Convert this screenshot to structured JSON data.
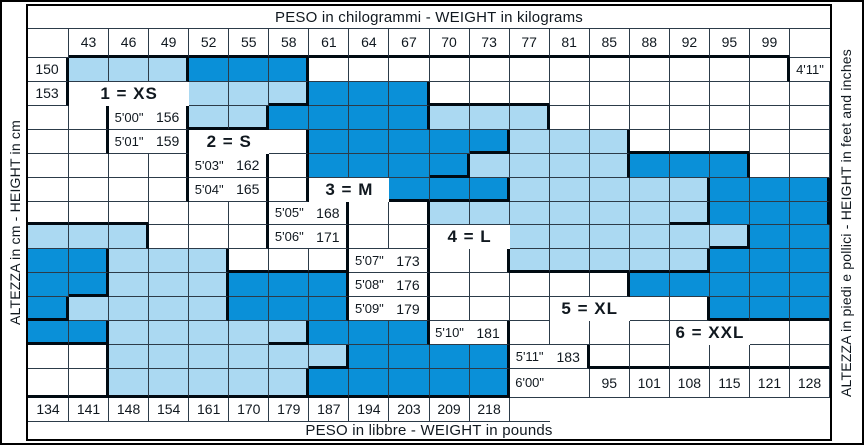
{
  "figure": {
    "top_title": "PESO in chilogrammi -  WEIGHT in kilograms",
    "bottom_title": "PESO in libbre -  WEIGHT in pounds",
    "left_title": "ALTEZZA in cm  -  HEIGHT in cm",
    "right_title": "ALTEZZA in piedi e pollici - HEIGHT in feet and inches"
  },
  "chart_data": {
    "type": "heatmap",
    "title": "Size chart: height vs weight with size zones",
    "columns_kg": [
      43,
      46,
      49,
      52,
      55,
      58,
      61,
      64,
      67,
      70,
      73,
      77,
      81,
      85,
      88,
      92,
      95,
      99
    ],
    "columns_lbs": [
      95,
      101,
      108,
      115,
      121,
      128,
      134,
      141,
      148,
      154,
      161,
      170,
      179,
      187,
      194,
      203,
      209,
      218
    ],
    "rows_cm": [
      150,
      153,
      156,
      159,
      162,
      165,
      168,
      171,
      173,
      176,
      179,
      181,
      183
    ],
    "rows_ft": [
      "4'11\"",
      "5'00\"",
      "5'01\"",
      "5'03\"",
      "5'04\"",
      "5'05\"",
      "5'06\"",
      "5'07\"",
      "5'08\"",
      "5'09\"",
      "5'10\"",
      "5'11\"",
      "6'00\""
    ],
    "legend": {
      "1": "XS",
      "2": "S",
      "3": "M",
      "4": "L",
      "5": "XL",
      "6": "XXL"
    },
    "cell_regions": [
      "111222............",
      "111222............",
      "112222333.........",
      ".22222333.........",
      ".22223333444......",
      ".22233333444......",
      "..3333333444555...",
      "..3333334444555...",
      "..3333344444555666",
      ".....4444445555666",
      ".....4444455555666",
      "........5555556666",
      "........5555566666"
    ],
    "region_labels": [
      {
        "text": "1 = XS",
        "row": 1,
        "col": 0,
        "span": 3
      },
      {
        "text": "2 = S",
        "row": 3,
        "col": 3,
        "span": 2
      },
      {
        "text": "3 = M",
        "row": 5,
        "col": 6,
        "span": 2
      },
      {
        "text": "4 = L",
        "row": 7,
        "col": 9,
        "span": 2
      },
      {
        "text": "5 = XL",
        "row": 10,
        "col": 12,
        "span": 2
      },
      {
        "text": "6 = XXL",
        "row": 11,
        "col": 15,
        "span": 2
      }
    ],
    "colors": {
      "light_zone": "#abd9f2",
      "dark_zone": "#0a90d8",
      "empty_cell": "#ffffff",
      "thin_grid_line": "#2c3b49",
      "thick_region_border": "#000a12"
    }
  }
}
